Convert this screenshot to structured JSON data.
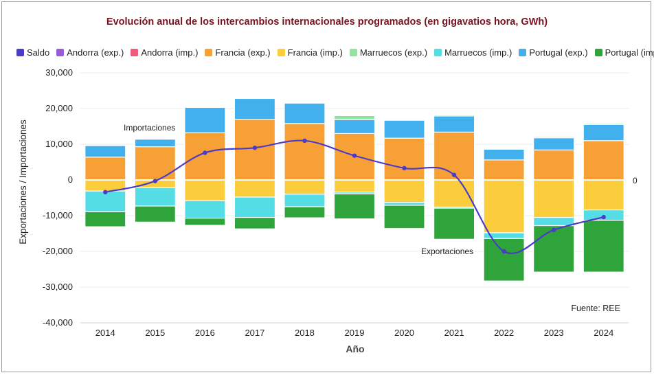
{
  "chart_data": {
    "type": "bar",
    "stacked": true,
    "title": "Evolución anual de los intercambios internacionales programados (en gigavatios hora, GWh)",
    "xlabel": "Año",
    "ylabel": "Exportaciones / Importaciones",
    "ylim": [
      -40000,
      30000
    ],
    "yticks": [
      30000,
      20000,
      10000,
      0,
      -10000,
      -20000,
      -30000,
      -40000
    ],
    "ytick_labels": [
      "30,000",
      "20,000",
      "10,000",
      "0",
      "-10,000",
      "-20,000",
      "-30,000",
      "-40,000"
    ],
    "categories": [
      "2014",
      "2015",
      "2016",
      "2017",
      "2018",
      "2019",
      "2020",
      "2021",
      "2022",
      "2023",
      "2024"
    ],
    "series": [
      {
        "name": "Francia (exp.)",
        "color": "#f7a035",
        "values": [
          6400,
          9300,
          13200,
          17000,
          15800,
          13000,
          11700,
          13400,
          5600,
          8400,
          11000
        ]
      },
      {
        "name": "Portugal (exp.)",
        "color": "#42b0ec",
        "values": [
          3200,
          2100,
          7100,
          5800,
          5700,
          3900,
          5000,
          4500,
          3000,
          3400,
          4500
        ]
      },
      {
        "name": "Marruecos (exp.)",
        "color": "#8ee69e",
        "values": [
          0,
          0,
          0,
          0,
          0,
          1100,
          0,
          300,
          0,
          300,
          300
        ]
      },
      {
        "name": "Francia (imp.)",
        "color": "#fbcd3c",
        "values": [
          -3100,
          -2200,
          -5800,
          -4800,
          -4000,
          -3400,
          -6300,
          -7600,
          -14800,
          -10500,
          -8400
        ]
      },
      {
        "name": "Marruecos (imp.)",
        "color": "#55dde6",
        "values": [
          -5800,
          -5100,
          -4900,
          -5700,
          -3500,
          -500,
          -800,
          -300,
          -1600,
          -2300,
          -2900
        ]
      },
      {
        "name": "Portugal (imp.)",
        "color": "#2ea43a",
        "values": [
          -4200,
          -4500,
          -2000,
          -3200,
          -3100,
          -7000,
          -6500,
          -8700,
          -11900,
          -13000,
          -14500
        ]
      }
    ],
    "line": {
      "name": "Saldo",
      "color": "#4a3cc8",
      "values": [
        -3400,
        -300,
        7600,
        9000,
        11000,
        6800,
        3300,
        1400,
        -20000,
        -14000,
        -10400
      ]
    },
    "legend": [
      {
        "name": "Saldo",
        "color": "#4a3cc8"
      },
      {
        "name": "Andorra (exp.)",
        "color": "#9a5bd8"
      },
      {
        "name": "Andorra (imp.)",
        "color": "#f05a78"
      },
      {
        "name": "Francia (exp.)",
        "color": "#f7a035"
      },
      {
        "name": "Francia (imp.)",
        "color": "#fbcd3c"
      },
      {
        "name": "Marruecos (exp.)",
        "color": "#8ee69e"
      },
      {
        "name": "Marruecos (imp.)",
        "color": "#55dde6"
      },
      {
        "name": "Portugal (exp.)",
        "color": "#42b0ec"
      },
      {
        "name": "Portugal (imp.)",
        "color": "#2ea43a"
      }
    ],
    "annotations": {
      "importaciones": "Importaciones",
      "exportaciones": "Exportaciones",
      "zero_label": "0",
      "source": "Fuente: REE"
    }
  }
}
